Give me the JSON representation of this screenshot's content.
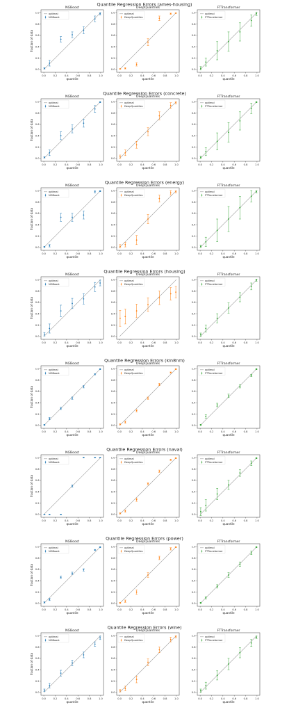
{
  "chart_data": [
    {
      "type": "scatter",
      "title": "Quantile Regression Errors (ames-housing)",
      "x_ticks": [
        0.0,
        0.2,
        0.4,
        0.6,
        0.8,
        1.0
      ],
      "y_ticks": [
        0.0,
        0.2,
        0.4,
        0.6,
        0.8,
        1.0
      ],
      "panels": [
        {
          "subtitle": "NGBoost",
          "xlabel": "quantile",
          "ylabel": "fraction of data",
          "legend": [
            "optimal",
            "NGBoost"
          ],
          "color": "#1f77b4",
          "x": [
            0.01,
            0.1,
            0.3,
            0.5,
            0.7,
            0.9,
            0.99
          ],
          "y": [
            0.02,
            0.11,
            0.53,
            0.61,
            0.69,
            0.89,
            0.98
          ],
          "err": [
            0.01,
            0.05,
            0.05,
            0.05,
            0.06,
            0.05,
            0.02
          ]
        },
        {
          "subtitle": "DeepQuantiles",
          "xlabel": "quantile",
          "ylabel": "",
          "legend": [
            "optimal",
            "DeepQuantiles"
          ],
          "color": "#ff7f0e",
          "x": [
            0.01,
            0.1,
            0.3,
            0.5,
            0.7,
            0.9,
            0.99
          ],
          "y": [
            0.01,
            0.02,
            0.09,
            0.48,
            0.9,
            0.98,
            0.99
          ],
          "err": [
            0.005,
            0.01,
            0.03,
            0.06,
            0.04,
            0.01,
            0.005
          ]
        },
        {
          "subtitle": "FTTransformer",
          "xlabel": "quantile",
          "ylabel": "",
          "legend": [
            "optimal",
            "FTTransformer"
          ],
          "color": "#2ca02c",
          "x": [
            0.01,
            0.1,
            0.3,
            0.5,
            0.7,
            0.9,
            0.99
          ],
          "y": [
            0.02,
            0.13,
            0.33,
            0.49,
            0.66,
            0.86,
            0.98
          ],
          "err": [
            0.03,
            0.07,
            0.16,
            0.17,
            0.16,
            0.1,
            0.03
          ]
        }
      ]
    },
    {
      "type": "scatter",
      "title": "Quantile Regression Errors (concrete)",
      "x_ticks": [
        0.0,
        0.2,
        0.4,
        0.6,
        0.8,
        1.0
      ],
      "y_ticks": [
        0.0,
        0.2,
        0.4,
        0.6,
        0.8,
        1.0
      ],
      "panels": [
        {
          "subtitle": "NGBoost",
          "xlabel": "quantile",
          "ylabel": "fraction of data",
          "legend": [
            "optimal",
            "NGBoost"
          ],
          "color": "#1f77b4",
          "x": [
            0.01,
            0.1,
            0.3,
            0.5,
            0.7,
            0.9,
            0.99
          ],
          "y": [
            0.02,
            0.1,
            0.4,
            0.52,
            0.62,
            0.87,
            0.99
          ],
          "err": [
            0.01,
            0.05,
            0.07,
            0.07,
            0.07,
            0.06,
            0.01
          ]
        },
        {
          "subtitle": "DeepQuantiles",
          "xlabel": "quantile",
          "ylabel": "",
          "legend": [
            "optimal",
            "DeepQuantiles"
          ],
          "color": "#ff7f0e",
          "x": [
            0.01,
            0.1,
            0.3,
            0.5,
            0.7,
            0.9,
            0.99
          ],
          "y": [
            0.03,
            0.1,
            0.24,
            0.47,
            0.75,
            0.93,
            0.98
          ],
          "err": [
            0.03,
            0.05,
            0.06,
            0.07,
            0.07,
            0.05,
            0.02
          ]
        },
        {
          "subtitle": "FTTransformer",
          "xlabel": "quantile",
          "ylabel": "",
          "legend": [
            "optimal",
            "FTTransformer"
          ],
          "color": "#2ca02c",
          "x": [
            0.01,
            0.1,
            0.3,
            0.5,
            0.7,
            0.9,
            0.99
          ],
          "y": [
            0.02,
            0.12,
            0.3,
            0.46,
            0.66,
            0.88,
            0.99
          ],
          "err": [
            0.02,
            0.07,
            0.15,
            0.17,
            0.16,
            0.09,
            0.01
          ]
        }
      ]
    },
    {
      "type": "scatter",
      "title": "Quantile Regression Errors (energy)",
      "x_ticks": [
        0.0,
        0.2,
        0.4,
        0.6,
        0.8,
        1.0
      ],
      "y_ticks": [
        0.0,
        0.2,
        0.4,
        0.6,
        0.8,
        1.0
      ],
      "panels": [
        {
          "subtitle": "NGBoost",
          "xlabel": "quantile",
          "ylabel": "fraction of data",
          "legend": [
            "optimal",
            "NGBoost"
          ],
          "color": "#1f77b4",
          "x": [
            0.01,
            0.1,
            0.3,
            0.5,
            0.7,
            0.9,
            0.99
          ],
          "y": [
            0.01,
            0.03,
            0.53,
            0.53,
            0.57,
            0.98,
            0.99
          ],
          "err": [
            0.01,
            0.02,
            0.07,
            0.07,
            0.07,
            0.02,
            0.01
          ]
        },
        {
          "subtitle": "DeepQuantiles",
          "xlabel": "quantile",
          "ylabel": "",
          "legend": [
            "optimal",
            "DeepQuantiles"
          ],
          "color": "#ff7f0e",
          "x": [
            0.01,
            0.1,
            0.3,
            0.5,
            0.7,
            0.9,
            0.99
          ],
          "y": [
            0.02,
            0.05,
            0.13,
            0.5,
            0.86,
            0.96,
            0.98
          ],
          "err": [
            0.03,
            0.04,
            0.08,
            0.08,
            0.06,
            0.04,
            0.02
          ]
        },
        {
          "subtitle": "FTTransformer",
          "xlabel": "quantile",
          "ylabel": "",
          "legend": [
            "optimal",
            "FTTransformer"
          ],
          "color": "#2ca02c",
          "x": [
            0.01,
            0.1,
            0.3,
            0.5,
            0.7,
            0.9,
            0.99
          ],
          "y": [
            0.02,
            0.1,
            0.3,
            0.5,
            0.7,
            0.9,
            0.98
          ],
          "err": [
            0.02,
            0.08,
            0.2,
            0.22,
            0.2,
            0.1,
            0.02
          ]
        }
      ]
    },
    {
      "type": "scatter",
      "title": "Quantile Regression Errors (housing)",
      "x_ticks": [
        0.0,
        0.2,
        0.4,
        0.6,
        0.8,
        1.0
      ],
      "y_ticks": [
        0.0,
        0.2,
        0.4,
        0.6,
        0.8,
        1.0
      ],
      "panels": [
        {
          "subtitle": "NGBoost",
          "xlabel": "quantile",
          "ylabel": "fraction of data",
          "legend": [
            "optimal",
            "NGBoost"
          ],
          "color": "#1f77b4",
          "x": [
            0.01,
            0.1,
            0.3,
            0.5,
            0.7,
            0.9,
            0.99
          ],
          "y": [
            0.04,
            0.14,
            0.45,
            0.58,
            0.66,
            0.87,
            0.94
          ],
          "err": [
            0.03,
            0.08,
            0.1,
            0.09,
            0.09,
            0.08,
            0.05
          ]
        },
        {
          "subtitle": "DeepQuantiles",
          "xlabel": "quantile",
          "ylabel": "",
          "legend": [
            "optimal",
            "DeepQuantiles"
          ],
          "color": "#ff7f0e",
          "x": [
            0.01,
            0.1,
            0.3,
            0.5,
            0.7,
            0.9,
            0.99
          ],
          "y": [
            0.32,
            0.35,
            0.45,
            0.56,
            0.68,
            0.75,
            0.78
          ],
          "err": [
            0.14,
            0.13,
            0.12,
            0.12,
            0.12,
            0.11,
            0.1
          ]
        },
        {
          "subtitle": "FTTransformer",
          "xlabel": "quantile",
          "ylabel": "",
          "legend": [
            "optimal",
            "FTTransformer"
          ],
          "color": "#2ca02c",
          "x": [
            0.01,
            0.1,
            0.3,
            0.5,
            0.7,
            0.9,
            0.99
          ],
          "y": [
            0.03,
            0.14,
            0.32,
            0.5,
            0.69,
            0.88,
            0.99
          ],
          "err": [
            0.03,
            0.06,
            0.08,
            0.09,
            0.08,
            0.06,
            0.02
          ]
        }
      ]
    },
    {
      "type": "scatter",
      "title": "Quantile Regression Errors (kin8nm)",
      "x_ticks": [
        0.0,
        0.2,
        0.4,
        0.6,
        0.8,
        1.0
      ],
      "y_ticks": [
        0.0,
        0.2,
        0.4,
        0.6,
        0.8,
        1.0
      ],
      "panels": [
        {
          "subtitle": "NGBoost",
          "xlabel": "quantile",
          "ylabel": "fraction of data",
          "legend": [
            "optimal",
            "NGBoost"
          ],
          "color": "#1f77b4",
          "x": [
            0.01,
            0.1,
            0.3,
            0.5,
            0.7,
            0.9,
            0.99
          ],
          "y": [
            0.01,
            0.12,
            0.3,
            0.48,
            0.68,
            0.9,
            0.99
          ],
          "err": [
            0.01,
            0.02,
            0.02,
            0.02,
            0.02,
            0.01,
            0.01
          ]
        },
        {
          "subtitle": "DeepQuantiles",
          "xlabel": "quantile",
          "ylabel": "",
          "legend": [
            "optimal",
            "DeepQuantiles"
          ],
          "color": "#ff7f0e",
          "x": [
            0.01,
            0.1,
            0.3,
            0.5,
            0.7,
            0.9,
            0.99
          ],
          "y": [
            0.02,
            0.06,
            0.26,
            0.48,
            0.72,
            0.93,
            0.99
          ],
          "err": [
            0.01,
            0.02,
            0.02,
            0.02,
            0.02,
            0.01,
            0.01
          ]
        },
        {
          "subtitle": "FTTransformer",
          "xlabel": "quantile",
          "ylabel": "",
          "legend": [
            "optimal",
            "FTTransformer"
          ],
          "color": "#2ca02c",
          "x": [
            0.01,
            0.1,
            0.3,
            0.5,
            0.7,
            0.9,
            0.99
          ],
          "y": [
            0.01,
            0.16,
            0.36,
            0.52,
            0.69,
            0.88,
            0.99
          ],
          "err": [
            0.01,
            0.03,
            0.03,
            0.03,
            0.03,
            0.02,
            0.01
          ]
        }
      ]
    },
    {
      "type": "scatter",
      "title": "Quantile Regression Errors (naval)",
      "x_ticks": [
        0.0,
        0.2,
        0.4,
        0.6,
        0.8,
        1.0
      ],
      "y_ticks": [
        0.0,
        0.2,
        0.4,
        0.6,
        0.8,
        1.0
      ],
      "panels": [
        {
          "subtitle": "NGBoost",
          "xlabel": "quantile",
          "ylabel": "fraction of data",
          "legend": [
            "optimal",
            "NGBoost"
          ],
          "color": "#1f77b4",
          "x": [
            0.01,
            0.1,
            0.3,
            0.5,
            0.7,
            0.9,
            0.99
          ],
          "y": [
            0.0,
            0.0,
            0.0,
            0.5,
            1.0,
            1.0,
            1.0
          ],
          "err": [
            0.005,
            0.005,
            0.005,
            0.02,
            0.005,
            0.005,
            0.005
          ]
        },
        {
          "subtitle": "DeepQuantiles",
          "xlabel": "quantile",
          "ylabel": "",
          "legend": [
            "optimal",
            "DeepQuantiles"
          ],
          "color": "#ff7f0e",
          "x": [
            0.01,
            0.1,
            0.3,
            0.5,
            0.7,
            0.9,
            0.99
          ],
          "y": [
            0.02,
            0.06,
            0.26,
            0.54,
            0.76,
            0.96,
            0.99
          ],
          "err": [
            0.01,
            0.02,
            0.03,
            0.02,
            0.02,
            0.01,
            0.01
          ]
        },
        {
          "subtitle": "FTTransformer",
          "xlabel": "quantile",
          "ylabel": "",
          "legend": [
            "optimal",
            "FTTransformer"
          ],
          "color": "#2ca02c",
          "x": [
            0.01,
            0.1,
            0.3,
            0.5,
            0.7,
            0.9,
            0.99
          ],
          "y": [
            0.05,
            0.16,
            0.36,
            0.52,
            0.73,
            0.9,
            0.99
          ],
          "err": [
            0.07,
            0.1,
            0.1,
            0.08,
            0.06,
            0.04,
            0.01
          ]
        }
      ]
    },
    {
      "type": "scatter",
      "title": "Quantile Regression Errors (power)",
      "x_ticks": [
        0.0,
        0.2,
        0.4,
        0.6,
        0.8,
        1.0
      ],
      "y_ticks": [
        0.0,
        0.2,
        0.4,
        0.6,
        0.8,
        1.0
      ],
      "panels": [
        {
          "subtitle": "NGBoost",
          "xlabel": "quantile",
          "ylabel": "fraction of data",
          "legend": [
            "optimal",
            "NGBoost"
          ],
          "color": "#1f77b4",
          "x": [
            0.01,
            0.1,
            0.3,
            0.5,
            0.7,
            0.9,
            0.99
          ],
          "y": [
            0.02,
            0.07,
            0.46,
            0.53,
            0.59,
            0.94,
            0.99
          ],
          "err": [
            0.01,
            0.02,
            0.02,
            0.02,
            0.02,
            0.01,
            0.01
          ]
        },
        {
          "subtitle": "DeepQuantiles",
          "xlabel": "quantile",
          "ylabel": "",
          "legend": [
            "optimal",
            "DeepQuantiles"
          ],
          "color": "#ff7f0e",
          "x": [
            0.01,
            0.1,
            0.3,
            0.5,
            0.7,
            0.9,
            0.99
          ],
          "y": [
            0.01,
            0.04,
            0.2,
            0.5,
            0.8,
            0.96,
            0.99
          ],
          "err": [
            0.01,
            0.02,
            0.04,
            0.04,
            0.03,
            0.02,
            0.01
          ]
        },
        {
          "subtitle": "FTTransformer",
          "xlabel": "quantile",
          "ylabel": "",
          "legend": [
            "optimal",
            "FTTransformer"
          ],
          "color": "#2ca02c",
          "x": [
            0.01,
            0.1,
            0.3,
            0.5,
            0.7,
            0.9,
            0.99
          ],
          "y": [
            0.01,
            0.1,
            0.3,
            0.5,
            0.69,
            0.89,
            0.99
          ],
          "err": [
            0.01,
            0.02,
            0.03,
            0.04,
            0.04,
            0.03,
            0.01
          ]
        }
      ]
    },
    {
      "type": "scatter",
      "title": "Quantile Regression Errors (wine)",
      "x_ticks": [
        0.0,
        0.2,
        0.4,
        0.6,
        0.8,
        1.0
      ],
      "y_ticks": [
        0.0,
        0.2,
        0.4,
        0.6,
        0.8,
        1.0
      ],
      "panels": [
        {
          "subtitle": "NGBoost",
          "xlabel": "quantile",
          "ylabel": "fraction of data",
          "legend": [
            "optimal",
            "NGBoost"
          ],
          "color": "#1f77b4",
          "x": [
            0.01,
            0.1,
            0.3,
            0.5,
            0.7,
            0.9,
            0.99
          ],
          "y": [
            0.04,
            0.12,
            0.34,
            0.52,
            0.66,
            0.85,
            0.96
          ],
          "err": [
            0.02,
            0.04,
            0.05,
            0.05,
            0.05,
            0.04,
            0.03
          ]
        },
        {
          "subtitle": "DeepQuantiles",
          "xlabel": "quantile",
          "ylabel": "",
          "legend": [
            "optimal",
            "DeepQuantiles"
          ],
          "color": "#ff7f0e",
          "x": [
            0.01,
            0.1,
            0.3,
            0.5,
            0.7,
            0.9,
            0.99
          ],
          "y": [
            0.03,
            0.07,
            0.23,
            0.53,
            0.75,
            0.93,
            0.98
          ],
          "err": [
            0.02,
            0.04,
            0.06,
            0.06,
            0.05,
            0.04,
            0.02
          ]
        },
        {
          "subtitle": "FTTransformer",
          "xlabel": "quantile",
          "ylabel": "",
          "legend": [
            "optimal",
            "FTTransformer"
          ],
          "color": "#2ca02c",
          "x": [
            0.01,
            0.1,
            0.3,
            0.5,
            0.7,
            0.9,
            0.99
          ],
          "y": [
            0.03,
            0.12,
            0.3,
            0.5,
            0.7,
            0.87,
            0.97
          ],
          "err": [
            0.03,
            0.06,
            0.08,
            0.1,
            0.09,
            0.06,
            0.02
          ]
        }
      ]
    }
  ]
}
